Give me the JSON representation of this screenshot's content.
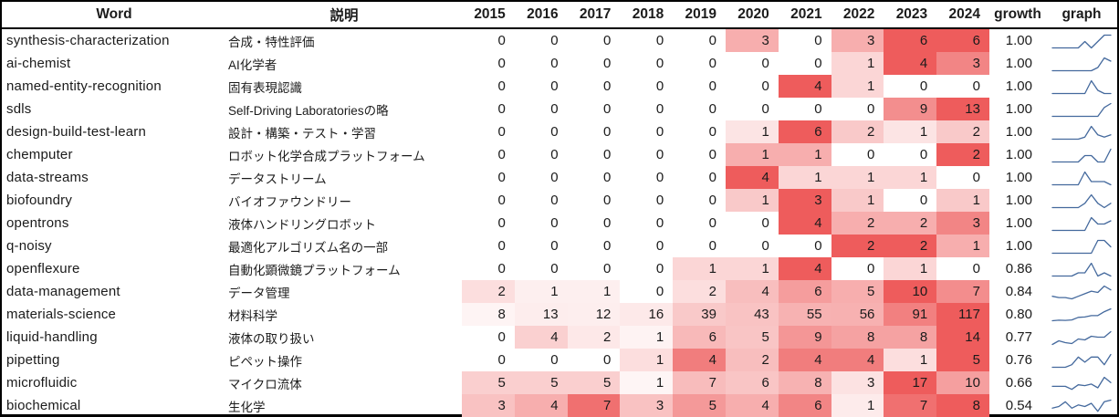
{
  "chart_data": {
    "type": "heatmap",
    "normalization": "per-row",
    "columns": {
      "word": "Word",
      "desc": "説明",
      "years": [
        "2015",
        "2016",
        "2017",
        "2018",
        "2019",
        "2020",
        "2021",
        "2022",
        "2023",
        "2024"
      ],
      "growth": "growth",
      "graph": "graph"
    },
    "rows": [
      {
        "word": "synthesis-characterization",
        "desc": "合成・特性評価",
        "values": [
          0,
          0,
          0,
          0,
          0,
          3,
          0,
          3,
          6,
          6
        ],
        "growth": "1.00"
      },
      {
        "word": "ai-chemist",
        "desc": "AI化学者",
        "values": [
          0,
          0,
          0,
          0,
          0,
          0,
          0,
          1,
          4,
          3
        ],
        "growth": "1.00"
      },
      {
        "word": "named-entity-recognition",
        "desc": "固有表現認識",
        "values": [
          0,
          0,
          0,
          0,
          0,
          0,
          4,
          1,
          0,
          0
        ],
        "growth": "1.00"
      },
      {
        "word": "sdls",
        "desc": "Self-Driving Laboratoriesの略",
        "values": [
          0,
          0,
          0,
          0,
          0,
          0,
          0,
          0,
          9,
          13
        ],
        "growth": "1.00"
      },
      {
        "word": "design-build-test-learn",
        "desc": "設計・構築・テスト・学習",
        "values": [
          0,
          0,
          0,
          0,
          0,
          1,
          6,
          2,
          1,
          2
        ],
        "growth": "1.00"
      },
      {
        "word": "chemputer",
        "desc": "ロボット化学合成プラットフォーム",
        "values": [
          0,
          0,
          0,
          0,
          0,
          1,
          1,
          0,
          0,
          2
        ],
        "growth": "1.00"
      },
      {
        "word": "data-streams",
        "desc": "データストリーム",
        "values": [
          0,
          0,
          0,
          0,
          0,
          4,
          1,
          1,
          1,
          0
        ],
        "growth": "1.00"
      },
      {
        "word": "biofoundry",
        "desc": "バイオファウンドリー",
        "values": [
          0,
          0,
          0,
          0,
          0,
          1,
          3,
          1,
          0,
          1
        ],
        "growth": "1.00"
      },
      {
        "word": "opentrons",
        "desc": "液体ハンドリングロボット",
        "values": [
          0,
          0,
          0,
          0,
          0,
          0,
          4,
          2,
          2,
          3
        ],
        "growth": "1.00"
      },
      {
        "word": "q-noisy",
        "desc": "最適化アルゴリズム名の一部",
        "values": [
          0,
          0,
          0,
          0,
          0,
          0,
          0,
          2,
          2,
          1
        ],
        "growth": "1.00"
      },
      {
        "word": "openflexure",
        "desc": "自動化顕微鏡プラットフォーム",
        "values": [
          0,
          0,
          0,
          0,
          1,
          1,
          4,
          0,
          1,
          0
        ],
        "growth": "0.86"
      },
      {
        "word": "data-management",
        "desc": "データ管理",
        "values": [
          2,
          1,
          1,
          0,
          2,
          4,
          6,
          5,
          10,
          7
        ],
        "growth": "0.84"
      },
      {
        "word": "materials-science",
        "desc": "材料科学",
        "values": [
          8,
          13,
          12,
          16,
          39,
          43,
          55,
          56,
          91,
          117
        ],
        "growth": "0.80"
      },
      {
        "word": "liquid-handling",
        "desc": "液体の取り扱い",
        "values": [
          0,
          4,
          2,
          1,
          6,
          5,
          9,
          8,
          8,
          14
        ],
        "growth": "0.77"
      },
      {
        "word": "pipetting",
        "desc": "ピペット操作",
        "values": [
          0,
          0,
          0,
          1,
          4,
          2,
          4,
          4,
          1,
          5
        ],
        "growth": "0.76"
      },
      {
        "word": "microfluidic",
        "desc": "マイクロ流体",
        "values": [
          5,
          5,
          5,
          1,
          7,
          6,
          8,
          3,
          17,
          10
        ],
        "growth": "0.66"
      },
      {
        "word": "biochemical",
        "desc": "生化学",
        "values": [
          3,
          4,
          7,
          3,
          5,
          4,
          6,
          1,
          7,
          8
        ],
        "growth": "0.54"
      }
    ],
    "colors": {
      "heat_low": "#ffffff",
      "heat_high": "#ee5c5c",
      "sparkline": "#44699d",
      "border": "#000000",
      "text": "#1b1b1b"
    }
  }
}
